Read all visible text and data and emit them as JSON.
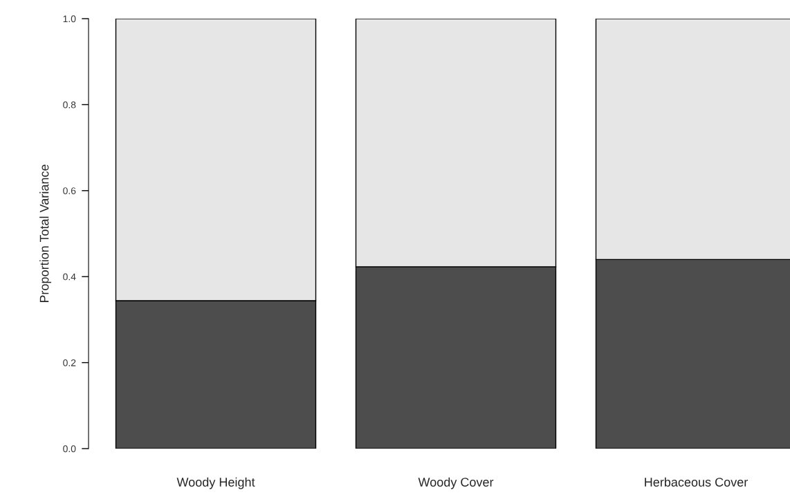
{
  "chart_data": {
    "type": "bar",
    "stacked": true,
    "ylabel": "Proportion Total Variance",
    "categories": [
      "Woody Height",
      "Woody Cover",
      "Herbaceous Cover"
    ],
    "series": [
      {
        "color": "#4d4d4d",
        "values": [
          0.344,
          0.423,
          0.44
        ]
      },
      {
        "color": "#e6e6e6",
        "values": [
          0.656,
          0.577,
          0.56
        ]
      }
    ],
    "ylim": [
      0,
      1
    ],
    "yticks": [
      {
        "value": 0,
        "label": "0.0"
      },
      {
        "value": 0.2,
        "label": "0.2"
      },
      {
        "value": 0.4,
        "label": "0.4"
      },
      {
        "value": 0.6,
        "label": "0.6"
      },
      {
        "value": 0.8,
        "label": "0.8"
      },
      {
        "value": 1,
        "label": "1.0"
      }
    ],
    "grid": false,
    "legend": false
  }
}
